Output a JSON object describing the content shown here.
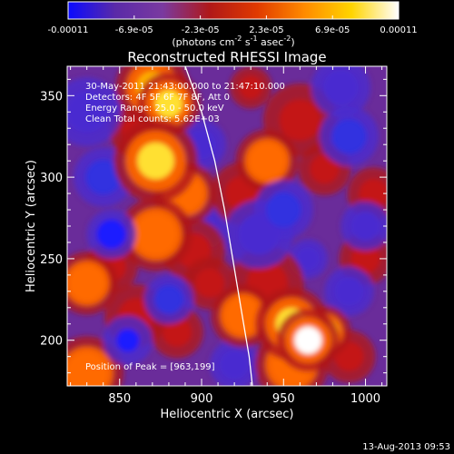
{
  "chart_data": {
    "type": "heatmap",
    "title": "Reconstructed RHESSI Image",
    "xlabel": "Heliocentric X (arcsec)",
    "ylabel": "Heliocentric Y (arcsec)",
    "xlim": [
      818,
      1013
    ],
    "ylim": [
      172,
      368
    ],
    "x_ticks": [
      850,
      900,
      950,
      1000
    ],
    "y_ticks": [
      200,
      250,
      300,
      350
    ],
    "colorbar": {
      "ticks": [
        "-0.00011",
        "-6.9e-05",
        "-2.3e-05",
        "2.3e-05",
        "6.9e-05",
        "0.00011"
      ],
      "units_line": "(photons cm",
      "units_sup1": "-2",
      "units_mid": " s",
      "units_sup2": "-1",
      "units_end": " asec",
      "units_sup3": "-2",
      "units_close": ")",
      "range": [
        -0.00011,
        0.00011
      ],
      "colors": [
        "#0a0aff",
        "#5a2aa8",
        "#7a3aa0",
        "#b01818",
        "#e03a00",
        "#ff8a00",
        "#ffd400",
        "#ffffff"
      ]
    },
    "info_lines": [
      "30-May-2011 21:43:00.000 to 21:47:10.000",
      "Detectors: 4F 5F 6F 7F 8F, Att 0",
      "Energy Range: 25.0 - 50.0 keV",
      "Clean     Total counts: 5.62E+03"
    ],
    "peak_label": "Position of Peak = [963,199]",
    "limb_curve": [
      [
        890,
        368
      ],
      [
        900,
        340
      ],
      [
        908,
        310
      ],
      [
        914,
        280
      ],
      [
        919,
        250
      ],
      [
        924,
        220
      ],
      [
        929,
        190
      ],
      [
        931,
        172
      ]
    ],
    "blobs": [
      [
        870,
        355,
        14,
        0.85
      ],
      [
        880,
        345,
        12,
        0.9
      ],
      [
        872,
        310,
        16,
        0.95
      ],
      [
        860,
        328,
        10,
        0.55
      ],
      [
        890,
        290,
        12,
        0.6
      ],
      [
        872,
        265,
        14,
        0.6
      ],
      [
        895,
        255,
        12,
        0.5
      ],
      [
        905,
        235,
        10,
        0.55
      ],
      [
        830,
        235,
        12,
        0.6
      ],
      [
        845,
        245,
        10,
        0.45
      ],
      [
        860,
        215,
        12,
        0.55
      ],
      [
        830,
        180,
        14,
        0.6
      ],
      [
        925,
        215,
        12,
        0.6
      ],
      [
        940,
        235,
        14,
        0.55
      ],
      [
        925,
        290,
        12,
        0.55
      ],
      [
        940,
        310,
        12,
        0.7
      ],
      [
        960,
        335,
        14,
        0.55
      ],
      [
        975,
        305,
        10,
        0.5
      ],
      [
        955,
        210,
        14,
        0.9
      ],
      [
        965,
        200,
        12,
        1.0
      ],
      [
        975,
        205,
        10,
        0.8
      ],
      [
        955,
        185,
        14,
        0.65
      ],
      [
        990,
        190,
        10,
        0.5
      ],
      [
        1005,
        290,
        10,
        0.5
      ],
      [
        1000,
        250,
        10,
        0.45
      ],
      [
        930,
        355,
        8,
        0.45
      ],
      [
        885,
        205,
        10,
        0.45
      ],
      [
        840,
        300,
        12,
        -0.7
      ],
      [
        830,
        340,
        14,
        -0.6
      ],
      [
        845,
        265,
        10,
        -0.8
      ],
      [
        855,
        200,
        10,
        -0.85
      ],
      [
        880,
        225,
        10,
        -0.75
      ],
      [
        900,
        320,
        10,
        -0.5
      ],
      [
        935,
        265,
        14,
        -0.55
      ],
      [
        950,
        280,
        12,
        -0.7
      ],
      [
        990,
        325,
        12,
        -0.65
      ],
      [
        985,
        355,
        12,
        -0.6
      ],
      [
        1000,
        270,
        10,
        -0.5
      ],
      [
        990,
        230,
        10,
        -0.6
      ],
      [
        920,
        185,
        10,
        -0.5
      ],
      [
        900,
        270,
        10,
        -0.4
      ],
      [
        965,
        250,
        8,
        -0.4
      ]
    ]
  },
  "footer": {
    "timestamp": "13-Aug-2013 09:53"
  }
}
